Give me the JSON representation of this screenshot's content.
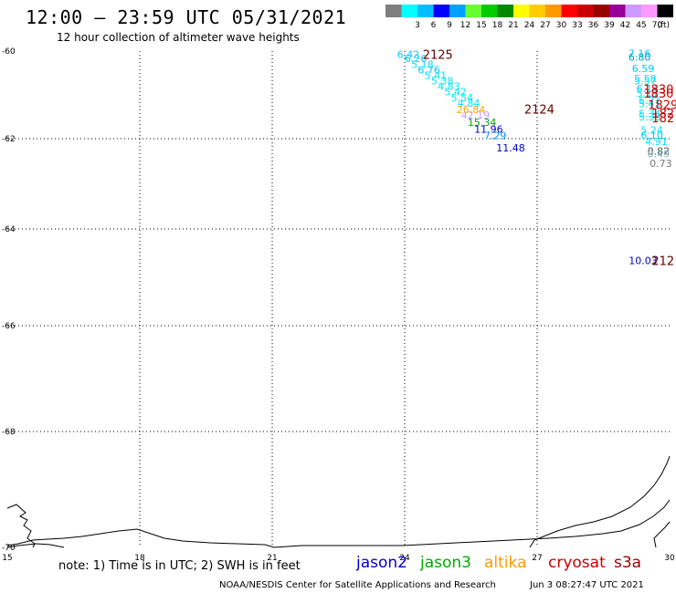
{
  "header": {
    "title": "12:00 – 23:59 UTC 05/31/2021",
    "subtitle": "12 hour collection of altimeter wave heights"
  },
  "color_scale": {
    "unit_label": "(ft)",
    "bins": [
      {
        "label": "",
        "color": "#7f7f7f"
      },
      {
        "label": "3",
        "color": "#00ffff"
      },
      {
        "label": "6",
        "color": "#00bfff"
      },
      {
        "label": "9",
        "color": "#0000ff"
      },
      {
        "label": "12",
        "color": "#00a0ff"
      },
      {
        "label": "15",
        "color": "#66ff33"
      },
      {
        "label": "18",
        "color": "#00cc00"
      },
      {
        "label": "21",
        "color": "#008800"
      },
      {
        "label": "24",
        "color": "#ffff00"
      },
      {
        "label": "27",
        "color": "#ffcc00"
      },
      {
        "label": "30",
        "color": "#ff9900"
      },
      {
        "label": "33",
        "color": "#ff0000"
      },
      {
        "label": "36",
        "color": "#cc0000"
      },
      {
        "label": "39",
        "color": "#990000"
      },
      {
        "label": "42",
        "color": "#990099"
      },
      {
        "label": "45",
        "color": "#cc99ff"
      },
      {
        "label": "70",
        "color": "#ff99ff"
      },
      {
        "label": "",
        "color": "#000000"
      }
    ]
  },
  "axes": {
    "lon_ticks": [
      "15",
      "18",
      "21",
      "24",
      "27",
      "30"
    ],
    "lon_values": [
      15,
      18,
      21,
      24,
      27,
      30
    ],
    "lat_ticks": [
      "-60",
      "-62",
      "-64",
      "-66",
      "-68",
      "-70"
    ],
    "lat_values": [
      -60,
      -62,
      -64,
      -66,
      -68,
      -70
    ],
    "lon_range": [
      15,
      30
    ],
    "lat_range": [
      -70,
      -60
    ]
  },
  "observations": [
    {
      "text": "6.42",
      "lon": 24.08,
      "lat": -60.07,
      "color": "#00ccff"
    },
    {
      "text": "6.26",
      "lon": 24.25,
      "lat": -60.17,
      "color": "#00ccff"
    },
    {
      "text": "5.18",
      "lon": 24.4,
      "lat": -60.3,
      "color": "#00e5ff"
    },
    {
      "text": "6.76",
      "lon": 24.55,
      "lat": -60.43,
      "color": "#00ccff"
    },
    {
      "text": "5.41",
      "lon": 24.7,
      "lat": -60.55,
      "color": "#00e5ff"
    },
    {
      "text": "5.38",
      "lon": 24.85,
      "lat": -60.68,
      "color": "#00e5ff"
    },
    {
      "text": "4.83",
      "lon": 25.0,
      "lat": -60.8,
      "color": "#00e5ff"
    },
    {
      "text": "5.42",
      "lon": 25.15,
      "lat": -60.93,
      "color": "#00e5ff"
    },
    {
      "text": "5.54",
      "lon": 25.3,
      "lat": -61.06,
      "color": "#00e5ff"
    },
    {
      "text": "4.84",
      "lon": 25.45,
      "lat": -61.19,
      "color": "#00e5ff"
    },
    {
      "text": "26.84",
      "lon": 25.5,
      "lat": -61.33,
      "color": "#ffaa00"
    },
    {
      "text": "42.19",
      "lon": 25.6,
      "lat": -61.46,
      "color": "#cc99ff"
    },
    {
      "text": "15.34",
      "lon": 25.75,
      "lat": -61.62,
      "color": "#00aa00"
    },
    {
      "text": "11.96",
      "lon": 25.9,
      "lat": -61.78,
      "color": "#0000cc"
    },
    {
      "text": "7.29",
      "lon": 26.05,
      "lat": -61.93,
      "color": "#0099ff"
    },
    {
      "text": "11.48",
      "lon": 26.4,
      "lat": -62.2,
      "color": "#0000cc"
    },
    {
      "text": "7.16",
      "lon": 29.32,
      "lat": -60.05,
      "color": "#00ccff"
    },
    {
      "text": "6.80",
      "lon": 29.32,
      "lat": -60.14,
      "color": "#0099cc"
    },
    {
      "text": "6.59",
      "lon": 29.4,
      "lat": -60.4,
      "color": "#00ccff"
    },
    {
      "text": "5.58",
      "lon": 29.45,
      "lat": -60.62,
      "color": "#00e5ff"
    },
    {
      "text": "5.57",
      "lon": 29.45,
      "lat": -60.68,
      "color": "#00e5ff"
    },
    {
      "text": "6.14",
      "lon": 29.5,
      "lat": -60.85,
      "color": "#00ccff"
    },
    {
      "text": "5.11",
      "lon": 29.5,
      "lat": -60.96,
      "color": "#00e5ff"
    },
    {
      "text": "5.21",
      "lon": 29.55,
      "lat": -61.13,
      "color": "#00e5ff"
    },
    {
      "text": "5.41",
      "lon": 29.55,
      "lat": -61.2,
      "color": "#00e5ff"
    },
    {
      "text": "5.34",
      "lon": 29.55,
      "lat": -61.43,
      "color": "#00e5ff"
    },
    {
      "text": "5.33",
      "lon": 29.55,
      "lat": -61.5,
      "color": "#00e5ff"
    },
    {
      "text": "5.24",
      "lon": 29.6,
      "lat": -61.8,
      "color": "#00e5ff"
    },
    {
      "text": "6.10",
      "lon": 29.6,
      "lat": -61.92,
      "color": "#00ccff"
    },
    {
      "text": "4.91",
      "lon": 29.7,
      "lat": -62.06,
      "color": "#00e5ff"
    },
    {
      "text": "0.82",
      "lon": 29.75,
      "lat": -62.27,
      "color": "#555555"
    },
    {
      "text": "0.49",
      "lon": 29.75,
      "lat": -62.33,
      "color": "#7fb0b0"
    },
    {
      "text": "0.73",
      "lon": 29.8,
      "lat": -62.55,
      "color": "#777777"
    },
    {
      "text": "10.03",
      "lon": 29.4,
      "lat": -64.65,
      "color": "#0000cc"
    }
  ],
  "track_labels": [
    {
      "text": "2125",
      "lon": 24.75,
      "lat": -60.07,
      "color": "#660000"
    },
    {
      "text": "2124",
      "lon": 27.05,
      "lat": -61.32,
      "color": "#660000"
    },
    {
      "text": "1830",
      "lon": 29.75,
      "lat": -60.86,
      "color": "#cc0000"
    },
    {
      "text": "1830",
      "lon": 29.75,
      "lat": -60.96,
      "color": "#cc0000"
    },
    {
      "text": "1829",
      "lon": 29.85,
      "lat": -61.22,
      "color": "#cc0000"
    },
    {
      "text": "182",
      "lon": 29.85,
      "lat": -61.42,
      "color": "#cc0000"
    },
    {
      "text": "182",
      "lon": 29.85,
      "lat": -61.52,
      "color": "#cc0000"
    },
    {
      "text": "212",
      "lon": 29.85,
      "lat": -64.65,
      "color": "#660000"
    }
  ],
  "legend": {
    "note": "note: 1) Time is in UTC; 2) SWH is in feet",
    "satellites": [
      {
        "name": "jason2",
        "color": "#0000cc"
      },
      {
        "name": "jason3",
        "color": "#00aa00"
      },
      {
        "name": "altika",
        "color": "#ff9900"
      },
      {
        "name": "cryosat",
        "color": "#cc0000"
      },
      {
        "name": "s3a",
        "color": "#990000"
      }
    ]
  },
  "footer": {
    "credit": "NOAA/NESDIS Center for Satellite Applications and Research",
    "timestamp": "Jun  3 08:27:47 UTC 2021"
  }
}
